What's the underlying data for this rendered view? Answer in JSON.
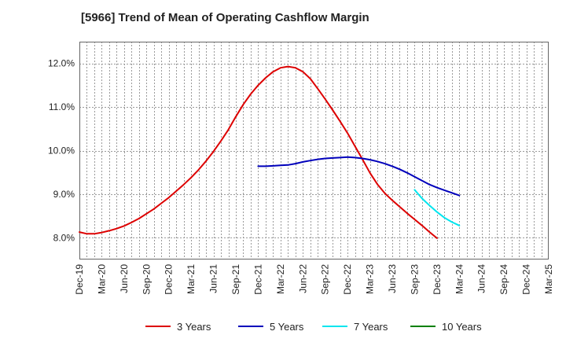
{
  "chart_data": {
    "type": "line",
    "title": "[5966]  Trend of Mean of Operating Cashflow Margin",
    "xlabel": "",
    "ylabel": "",
    "y_unit": "%",
    "ylim": [
      7.5,
      12.5
    ],
    "yticks": [
      8.0,
      9.0,
      10.0,
      11.0,
      12.0
    ],
    "ytick_labels": [
      "8.0%",
      "9.0%",
      "10.0%",
      "11.0%",
      "12.0%"
    ],
    "x_start": "Dec-19",
    "x_tick_labels": [
      "Dec-19",
      "Mar-20",
      "Jun-20",
      "Sep-20",
      "Dec-20",
      "Mar-21",
      "Jun-21",
      "Sep-21",
      "Dec-21",
      "Mar-22",
      "Jun-22",
      "Sep-22",
      "Dec-22",
      "Mar-23",
      "Jun-23",
      "Sep-23",
      "Dec-23",
      "Mar-24",
      "Jun-24",
      "Sep-24",
      "Dec-24",
      "Mar-25"
    ],
    "grid": true,
    "legend_position": "bottom",
    "series": [
      {
        "name": "3 Years",
        "color": "#dd0000",
        "points": [
          [
            0,
            8.13
          ],
          [
            1,
            8.09
          ],
          [
            2,
            8.09
          ],
          [
            3,
            8.12
          ],
          [
            4,
            8.16
          ],
          [
            5,
            8.21
          ],
          [
            6,
            8.27
          ],
          [
            7,
            8.35
          ],
          [
            8,
            8.44
          ],
          [
            9,
            8.55
          ],
          [
            10,
            8.66
          ],
          [
            11,
            8.79
          ],
          [
            12,
            8.92
          ],
          [
            13,
            9.07
          ],
          [
            14,
            9.22
          ],
          [
            15,
            9.38
          ],
          [
            16,
            9.56
          ],
          [
            17,
            9.76
          ],
          [
            18,
            9.98
          ],
          [
            19,
            10.22
          ],
          [
            20,
            10.48
          ],
          [
            21,
            10.78
          ],
          [
            22,
            11.06
          ],
          [
            23,
            11.3
          ],
          [
            24,
            11.5
          ],
          [
            25,
            11.67
          ],
          [
            26,
            11.81
          ],
          [
            27,
            11.9
          ],
          [
            28,
            11.93
          ],
          [
            29,
            11.9
          ],
          [
            30,
            11.81
          ],
          [
            31,
            11.65
          ],
          [
            32,
            11.42
          ],
          [
            33,
            11.18
          ],
          [
            34,
            10.93
          ],
          [
            35,
            10.67
          ],
          [
            36,
            10.4
          ],
          [
            37,
            10.1
          ],
          [
            38,
            9.8
          ],
          [
            39,
            9.49
          ],
          [
            40,
            9.23
          ],
          [
            41,
            9.02
          ],
          [
            42,
            8.86
          ],
          [
            43,
            8.71
          ],
          [
            44,
            8.56
          ],
          [
            45,
            8.42
          ],
          [
            46,
            8.28
          ],
          [
            47,
            8.13
          ],
          [
            48,
            7.99
          ]
        ]
      },
      {
        "name": "5 Years",
        "color": "#0000bb",
        "points": [
          [
            24,
            9.64
          ],
          [
            25,
            9.64
          ],
          [
            26,
            9.65
          ],
          [
            27,
            9.66
          ],
          [
            28,
            9.67
          ],
          [
            29,
            9.7
          ],
          [
            30,
            9.74
          ],
          [
            31,
            9.77
          ],
          [
            32,
            9.8
          ],
          [
            33,
            9.82
          ],
          [
            34,
            9.83
          ],
          [
            35,
            9.84
          ],
          [
            36,
            9.85
          ],
          [
            37,
            9.84
          ],
          [
            38,
            9.82
          ],
          [
            39,
            9.79
          ],
          [
            40,
            9.75
          ],
          [
            41,
            9.7
          ],
          [
            42,
            9.64
          ],
          [
            43,
            9.57
          ],
          [
            44,
            9.49
          ],
          [
            45,
            9.4
          ],
          [
            46,
            9.31
          ],
          [
            47,
            9.22
          ],
          [
            48,
            9.15
          ],
          [
            49,
            9.09
          ],
          [
            50,
            9.03
          ],
          [
            51,
            8.97
          ]
        ]
      },
      {
        "name": "7 Years",
        "color": "#00e5ee",
        "points": [
          [
            45,
            9.1
          ],
          [
            46,
            8.9
          ],
          [
            47,
            8.74
          ],
          [
            48,
            8.59
          ],
          [
            49,
            8.46
          ],
          [
            50,
            8.36
          ],
          [
            51,
            8.28
          ]
        ]
      },
      {
        "name": "10 Years",
        "color": "#008000",
        "points": []
      }
    ]
  }
}
